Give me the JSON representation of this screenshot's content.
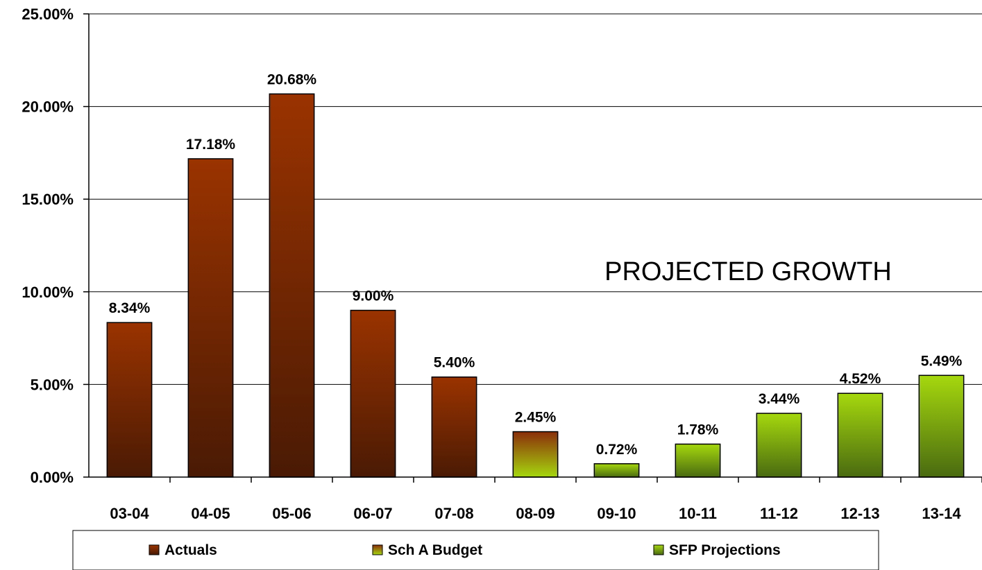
{
  "chart_data": {
    "type": "bar",
    "categories": [
      "03-04",
      "04-05",
      "05-06",
      "06-07",
      "07-08",
      "08-09",
      "09-10",
      "10-11",
      "11-12",
      "12-13",
      "13-14"
    ],
    "values": [
      8.34,
      17.18,
      20.68,
      9.0,
      5.4,
      2.45,
      0.72,
      1.78,
      3.44,
      4.52,
      5.49
    ],
    "data_labels": [
      "8.34%",
      "17.18%",
      "20.68%",
      "9.00%",
      "5.40%",
      "2.45%",
      "0.72%",
      "1.78%",
      "3.44%",
      "4.52%",
      "5.49%"
    ],
    "series_assignment": [
      "Actuals",
      "Actuals",
      "Actuals",
      "Actuals",
      "Actuals",
      "Sch A Budget",
      "SFP Projections",
      "SFP Projections",
      "SFP Projections",
      "SFP Projections",
      "SFP Projections"
    ],
    "legend": [
      {
        "name": "Actuals",
        "colors": [
          "#9a3300",
          "#4a1a04"
        ]
      },
      {
        "name": "Sch A Budget",
        "colors": [
          "#8b2e0a",
          "#a6d80e"
        ]
      },
      {
        "name": "SFP Projections",
        "colors": [
          "#a6d80e",
          "#4a6a10"
        ]
      }
    ],
    "legend_placement": "bottom",
    "ylim": [
      0,
      25
    ],
    "yticks": [
      0,
      5,
      10,
      15,
      20,
      25
    ],
    "ytick_labels": [
      "0.00%",
      "5.00%",
      "10.00%",
      "15.00%",
      "20.00%",
      "25.00%"
    ],
    "grid": true,
    "annotation": "PROJECTED GROWTH",
    "title": "",
    "xlabel": "",
    "ylabel": ""
  }
}
